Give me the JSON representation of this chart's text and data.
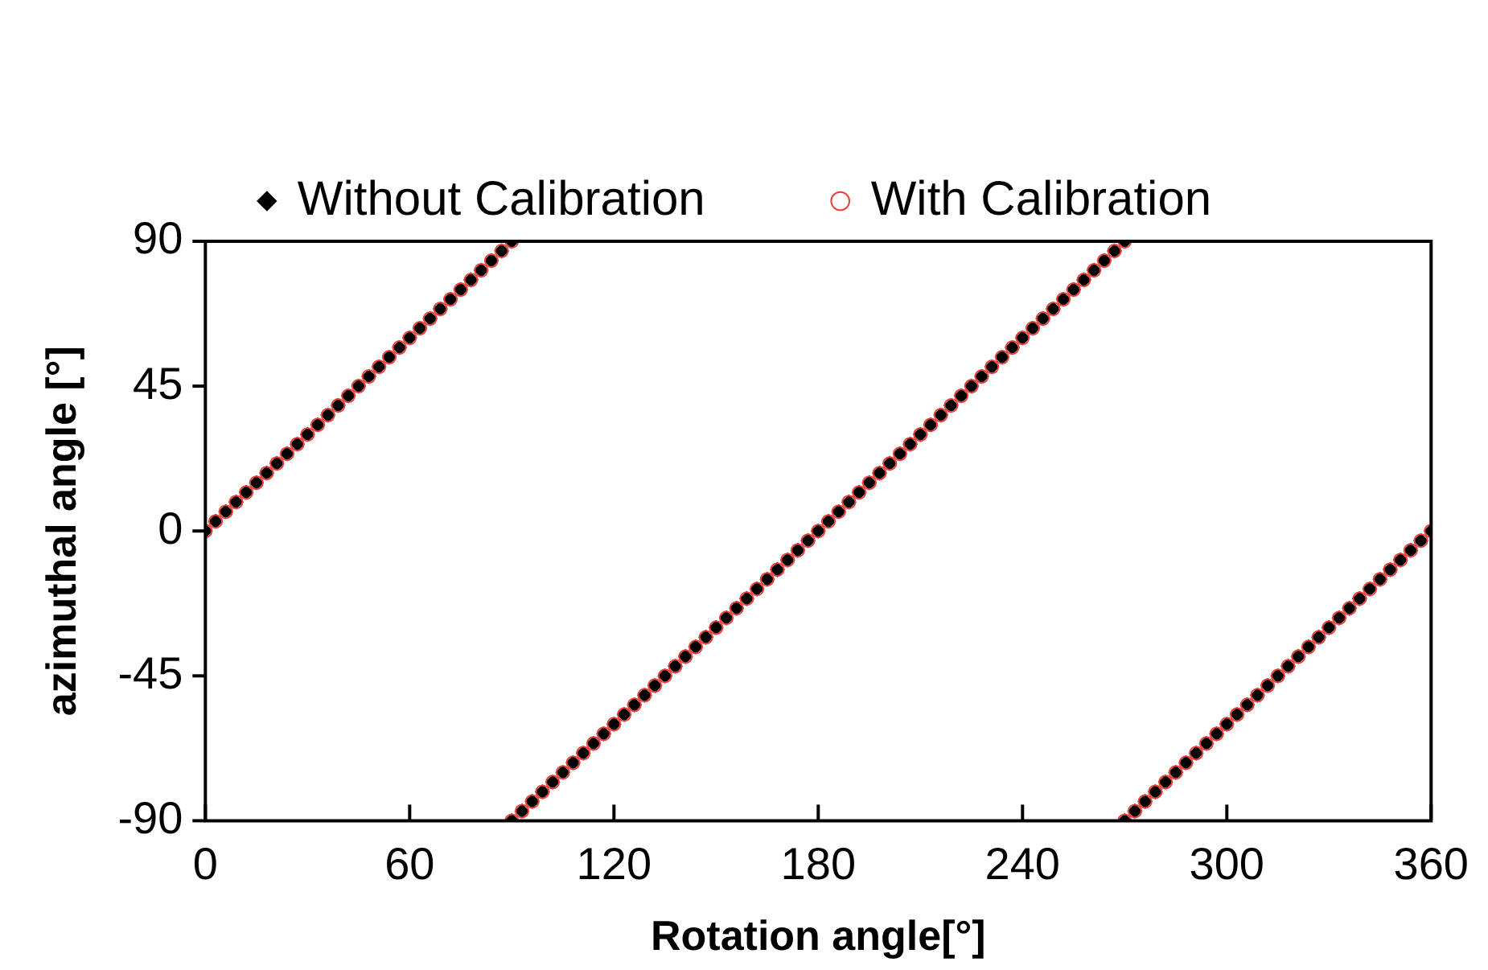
{
  "chart_data": {
    "type": "scatter",
    "xlabel": "Rotation angle[°]",
    "ylabel": "azimuthal angle [°]",
    "x": [
      0,
      3,
      6,
      9,
      12,
      15,
      18,
      21,
      24,
      27,
      30,
      33,
      36,
      39,
      42,
      45,
      48,
      51,
      54,
      57,
      60,
      63,
      66,
      69,
      72,
      75,
      78,
      81,
      84,
      87,
      90,
      90,
      93,
      96,
      99,
      102,
      105,
      108,
      111,
      114,
      117,
      120,
      123,
      126,
      129,
      132,
      135,
      138,
      141,
      144,
      147,
      150,
      153,
      156,
      159,
      162,
      165,
      168,
      171,
      174,
      177,
      180,
      183,
      186,
      189,
      192,
      195,
      198,
      201,
      204,
      207,
      210,
      213,
      216,
      219,
      222,
      225,
      228,
      231,
      234,
      237,
      240,
      243,
      246,
      249,
      252,
      255,
      258,
      261,
      264,
      267,
      270,
      270,
      273,
      276,
      279,
      282,
      285,
      288,
      291,
      294,
      297,
      300,
      303,
      306,
      309,
      312,
      315,
      318,
      321,
      324,
      327,
      330,
      333,
      336,
      339,
      342,
      345,
      348,
      351,
      354,
      357,
      360
    ],
    "series": [
      {
        "name": "Without Calibration",
        "color": "#000000",
        "marker": "diamond",
        "values": [
          0,
          3,
          6,
          9,
          12,
          15,
          18,
          21,
          24,
          27,
          30,
          33,
          36,
          39,
          42,
          45,
          48,
          51,
          54,
          57,
          60,
          63,
          66,
          69,
          72,
          75,
          78,
          81,
          84,
          87,
          90,
          -90,
          -87,
          -84,
          -81,
          -78,
          -75,
          -72,
          -69,
          -66,
          -63,
          -60,
          -57,
          -54,
          -51,
          -48,
          -45,
          -42,
          -39,
          -36,
          -33,
          -30,
          -27,
          -24,
          -21,
          -18,
          -15,
          -12,
          -9,
          -6,
          -3,
          0,
          3,
          6,
          9,
          12,
          15,
          18,
          21,
          24,
          27,
          30,
          33,
          36,
          39,
          42,
          45,
          48,
          51,
          54,
          57,
          60,
          63,
          66,
          69,
          72,
          75,
          78,
          81,
          84,
          87,
          90,
          -90,
          -87,
          -84,
          -81,
          -78,
          -75,
          -72,
          -69,
          -66,
          -63,
          -60,
          -57,
          -54,
          -51,
          -48,
          -45,
          -42,
          -39,
          -36,
          -33,
          -30,
          -27,
          -24,
          -21,
          -18,
          -15,
          -12,
          -9,
          -6,
          -3,
          0
        ]
      },
      {
        "name": "With Calibration",
        "color": "#e8403a",
        "marker": "circle",
        "values": [
          0,
          3,
          6,
          9,
          12,
          15,
          18,
          21,
          24,
          27,
          30,
          33,
          36,
          39,
          42,
          45,
          48,
          51,
          54,
          57,
          60,
          63,
          66,
          69,
          72,
          75,
          78,
          81,
          84,
          87,
          90,
          -90,
          -87,
          -84,
          -81,
          -78,
          -75,
          -72,
          -69,
          -66,
          -63,
          -60,
          -57,
          -54,
          -51,
          -48,
          -45,
          -42,
          -39,
          -36,
          -33,
          -30,
          -27,
          -24,
          -21,
          -18,
          -15,
          -12,
          -9,
          -6,
          -3,
          0,
          3,
          6,
          9,
          12,
          15,
          18,
          21,
          24,
          27,
          30,
          33,
          36,
          39,
          42,
          45,
          48,
          51,
          54,
          57,
          60,
          63,
          66,
          69,
          72,
          75,
          78,
          81,
          84,
          87,
          90,
          -90,
          -87,
          -84,
          -81,
          -78,
          -75,
          -72,
          -69,
          -66,
          -63,
          -60,
          -57,
          -54,
          -51,
          -48,
          -45,
          -42,
          -39,
          -36,
          -33,
          -30,
          -27,
          -24,
          -21,
          -18,
          -15,
          -12,
          -9,
          -6,
          -3,
          0
        ]
      }
    ],
    "xlim": [
      0,
      360
    ],
    "xticks": [
      0,
      60,
      120,
      180,
      240,
      300,
      360
    ],
    "ylim": [
      -90,
      90
    ],
    "yticks": [
      -90,
      -45,
      0,
      45,
      90
    ],
    "grid": false,
    "legend": "top"
  }
}
